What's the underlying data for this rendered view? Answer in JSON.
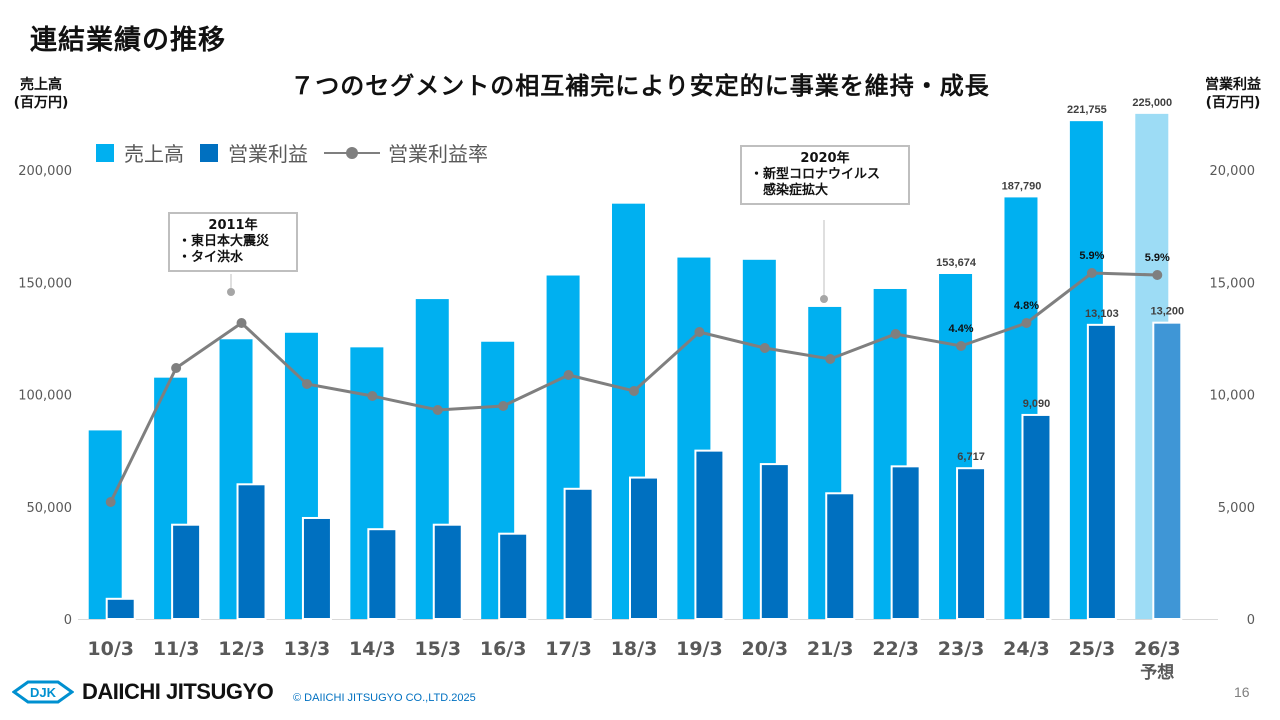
{
  "page": {
    "title": "連結業績の推移",
    "subtitle": "７つのセグメントの相互補完により安定的に事業を維持・成長",
    "page_number": "16",
    "logo_text": "DAIICHI JITSUGYO",
    "logo_mark": "DJK",
    "copyright": "© DAIICHI JITSUGYO CO.,LTD.2025"
  },
  "axes": {
    "left_title_line1": "売上高",
    "left_title_line2": "(百万円)",
    "right_title_line1": "営業利益",
    "right_title_line2": "(百万円)"
  },
  "legend": {
    "sales": "売上高",
    "op_profit": "営業利益",
    "op_margin": "営業利益率"
  },
  "callouts": {
    "c2011": {
      "year": "2011年",
      "lines": [
        "・東日本大震災",
        "・タイ洪水"
      ]
    },
    "c2020": {
      "year": "2020年",
      "lines": [
        "・新型コロナウイルス",
        "　感染症拡大"
      ]
    }
  },
  "colors": {
    "sales": "#00b0f0",
    "sales_forecast": "#9ddcf5",
    "op_profit": "#0070c0",
    "op_profit_forecast": "#3f96d6",
    "margin_line": "#7f7f7f",
    "axis_text": "#595959"
  },
  "chart_data": {
    "type": "bar",
    "title": "連結業績の推移",
    "subtitle": "７つのセグメントの相互補完により安定的に事業を維持・成長",
    "categories": [
      "10/3",
      "11/3",
      "12/3",
      "13/3",
      "14/3",
      "15/3",
      "16/3",
      "17/3",
      "18/3",
      "19/3",
      "20/3",
      "21/3",
      "22/3",
      "23/3",
      "24/3",
      "25/3",
      "26/3"
    ],
    "category_sublabels": {
      "26/3": "予想"
    },
    "forecast_categories": [
      "26/3"
    ],
    "series": [
      {
        "name": "売上高",
        "type": "bar",
        "axis": "left",
        "values": [
          84000,
          107500,
          124600,
          127500,
          121000,
          142500,
          123500,
          153000,
          185000,
          161000,
          160000,
          139000,
          147000,
          153674,
          187790,
          221755,
          225000
        ],
        "labels": [
          null,
          null,
          null,
          null,
          null,
          null,
          null,
          null,
          null,
          null,
          null,
          null,
          null,
          "153,674",
          "187,790",
          "221,755",
          "225,000"
        ]
      },
      {
        "name": "営業利益",
        "type": "bar",
        "axis": "right",
        "values": [
          900,
          4200,
          6000,
          4500,
          4000,
          4200,
          3800,
          5800,
          6300,
          7500,
          6900,
          5600,
          6800,
          6717,
          9090,
          13103,
          13200
        ],
        "labels": [
          null,
          null,
          null,
          null,
          null,
          null,
          null,
          null,
          null,
          null,
          null,
          null,
          null,
          "6,717",
          "9,090",
          "13,103",
          "13,200"
        ]
      },
      {
        "name": "営業利益率",
        "type": "line",
        "axis": "right",
        "unit": "%",
        "values": [
          1.1,
          3.9,
          4.8,
          3.5,
          3.3,
          2.9,
          3.1,
          3.8,
          3.4,
          4.7,
          4.3,
          4.0,
          4.6,
          4.4,
          4.8,
          5.9,
          5.9
        ],
        "labels": [
          null,
          null,
          null,
          null,
          null,
          null,
          null,
          null,
          null,
          null,
          null,
          null,
          null,
          "4.4%",
          "4.8%",
          "5.9%",
          "5.9%"
        ]
      }
    ],
    "left_axis": {
      "label": "売上高 (百万円)",
      "range": [
        0,
        200000
      ],
      "ticks": [
        "0",
        "50,000",
        "100,000",
        "150,000",
        "200,000"
      ]
    },
    "right_axis": {
      "label": "営業利益 (百万円)",
      "range": [
        0,
        20000
      ],
      "ticks": [
        "0",
        "5,000",
        "10,000",
        "15,000",
        "20,000"
      ]
    },
    "grid": false,
    "legend_position": "top-left"
  }
}
